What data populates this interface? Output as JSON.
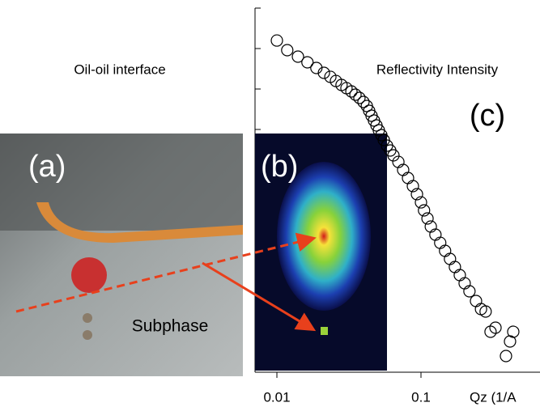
{
  "panels": {
    "a": {
      "label": "(a)",
      "title": "Oil-oil interface",
      "note": "Subphase"
    },
    "b": {
      "label": "(b)"
    }
  },
  "chart_data": {
    "type": "scatter",
    "panel_label": "(c)",
    "y_label": "Reflectivity Intensity",
    "x_label": "Qz (1/A",
    "x": [
      0.01,
      0.0118,
      0.014,
      0.0163,
      0.0188,
      0.0212,
      0.0235,
      0.0257,
      0.0281,
      0.0304,
      0.0329,
      0.0351,
      0.0374,
      0.0399,
      0.0421,
      0.0437,
      0.0454,
      0.0472,
      0.0491,
      0.051,
      0.0531,
      0.0552,
      0.0581,
      0.0612,
      0.0644,
      0.0697,
      0.0752,
      0.0813,
      0.0879,
      0.0938,
      0.1,
      0.105,
      0.111,
      0.117,
      0.126,
      0.136,
      0.147,
      0.159,
      0.172,
      0.186,
      0.201,
      0.217,
      0.241,
      0.261,
      0.281,
      0.304,
      0.329,
      0.389,
      0.415,
      0.437
    ],
    "values": [
      0.158,
      0.0912,
      0.0631,
      0.0457,
      0.0331,
      0.0251,
      0.02,
      0.0158,
      0.0126,
      0.0105,
      0.00871,
      0.00724,
      0.00603,
      0.00479,
      0.0038,
      0.00288,
      0.00219,
      0.00166,
      0.00126,
      0.000955,
      0.000724,
      0.00055,
      0.000398,
      0.000302,
      0.000229,
      0.000158,
      0.0001,
      6.31e-05,
      3.98e-05,
      2.51e-05,
      1.58e-05,
      1e-05,
      6.31e-06,
      3.98e-06,
      2.51e-06,
      1.58e-06,
      1e-06,
      6.31e-07,
      3.98e-07,
      2.51e-07,
      1.58e-07,
      1e-07,
      5.75e-08,
      3.63e-08,
      3.16e-08,
      1e-08,
      1.26e-08,
      2.51e-09,
      5.75e-09,
      1e-08
    ],
    "color": "#000000",
    "log_x": true,
    "log_y": true,
    "xlim": [
      0.00705,
      0.67
    ],
    "ylim": [
      1e-09,
      1
    ],
    "xticks": [
      0.01,
      0.1
    ],
    "yticks": [
      1e-09,
      1e-08,
      1e-07,
      1e-06,
      1e-05,
      0.0001,
      0.001,
      0.01,
      0.1,
      1
    ]
  }
}
